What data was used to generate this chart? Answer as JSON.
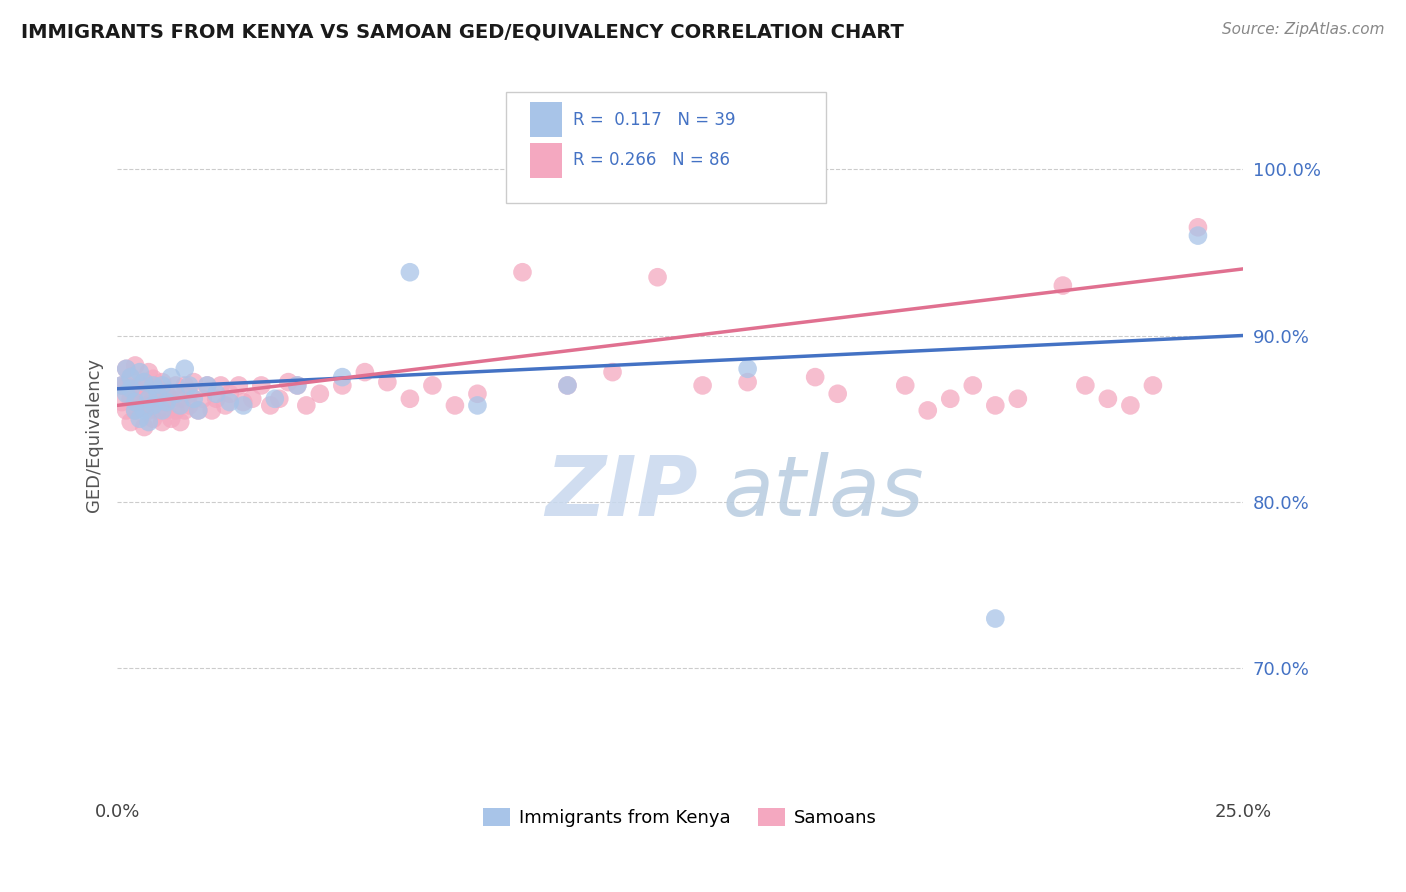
{
  "title": "IMMIGRANTS FROM KENYA VS SAMOAN GED/EQUIVALENCY CORRELATION CHART",
  "source": "Source: ZipAtlas.com",
  "ylabel": "GED/Equivalency",
  "ytick_labels": [
    "70.0%",
    "80.0%",
    "90.0%",
    "100.0%"
  ],
  "ytick_values": [
    0.7,
    0.8,
    0.9,
    1.0
  ],
  "xlim": [
    0.0,
    0.25
  ],
  "ylim": [
    0.625,
    1.055
  ],
  "legend_label1": "Immigrants from Kenya",
  "legend_label2": "Samoans",
  "blue_color": "#a8c4e8",
  "pink_color": "#f4a8c0",
  "blue_line_color": "#4472c4",
  "pink_line_color": "#e07090",
  "watermark_zip": "ZIP",
  "watermark_atlas": "atlas",
  "kenya_x": [
    0.001,
    0.002,
    0.002,
    0.003,
    0.003,
    0.004,
    0.004,
    0.005,
    0.005,
    0.006,
    0.006,
    0.007,
    0.007,
    0.008,
    0.008,
    0.009,
    0.01,
    0.01,
    0.011,
    0.012,
    0.013,
    0.014,
    0.015,
    0.016,
    0.017,
    0.018,
    0.02,
    0.022,
    0.025,
    0.028,
    0.035,
    0.04,
    0.05,
    0.065,
    0.08,
    0.1,
    0.14,
    0.195,
    0.24
  ],
  "kenya_y": [
    0.87,
    0.865,
    0.88,
    0.875,
    0.868,
    0.86,
    0.855,
    0.878,
    0.85,
    0.872,
    0.855,
    0.862,
    0.848,
    0.87,
    0.858,
    0.865,
    0.87,
    0.855,
    0.86,
    0.875,
    0.865,
    0.858,
    0.88,
    0.87,
    0.862,
    0.855,
    0.87,
    0.865,
    0.86,
    0.858,
    0.862,
    0.87,
    0.875,
    0.938,
    0.858,
    0.87,
    0.88,
    0.73,
    0.96
  ],
  "samoan_x": [
    0.001,
    0.001,
    0.002,
    0.002,
    0.002,
    0.003,
    0.003,
    0.003,
    0.004,
    0.004,
    0.004,
    0.005,
    0.005,
    0.005,
    0.006,
    0.006,
    0.006,
    0.007,
    0.007,
    0.007,
    0.008,
    0.008,
    0.008,
    0.009,
    0.009,
    0.01,
    0.01,
    0.01,
    0.011,
    0.011,
    0.012,
    0.012,
    0.013,
    0.013,
    0.014,
    0.014,
    0.015,
    0.015,
    0.016,
    0.016,
    0.017,
    0.018,
    0.019,
    0.02,
    0.021,
    0.022,
    0.023,
    0.024,
    0.025,
    0.027,
    0.028,
    0.03,
    0.032,
    0.034,
    0.036,
    0.038,
    0.04,
    0.042,
    0.045,
    0.05,
    0.055,
    0.06,
    0.065,
    0.07,
    0.075,
    0.08,
    0.09,
    0.1,
    0.11,
    0.12,
    0.13,
    0.14,
    0.155,
    0.16,
    0.175,
    0.18,
    0.185,
    0.19,
    0.195,
    0.2,
    0.21,
    0.215,
    0.22,
    0.225,
    0.23,
    0.24
  ],
  "samoan_y": [
    0.86,
    0.87,
    0.855,
    0.87,
    0.88,
    0.848,
    0.862,
    0.875,
    0.855,
    0.868,
    0.882,
    0.858,
    0.87,
    0.862,
    0.845,
    0.858,
    0.872,
    0.855,
    0.865,
    0.878,
    0.85,
    0.862,
    0.874,
    0.855,
    0.868,
    0.848,
    0.86,
    0.872,
    0.855,
    0.865,
    0.85,
    0.862,
    0.855,
    0.87,
    0.848,
    0.862,
    0.855,
    0.87,
    0.858,
    0.865,
    0.872,
    0.855,
    0.862,
    0.87,
    0.855,
    0.862,
    0.87,
    0.858,
    0.865,
    0.87,
    0.86,
    0.862,
    0.87,
    0.858,
    0.862,
    0.872,
    0.87,
    0.858,
    0.865,
    0.87,
    0.878,
    0.872,
    0.862,
    0.87,
    0.858,
    0.865,
    0.938,
    0.87,
    0.878,
    0.935,
    0.87,
    0.872,
    0.875,
    0.865,
    0.87,
    0.855,
    0.862,
    0.87,
    0.858,
    0.862,
    0.93,
    0.87,
    0.862,
    0.858,
    0.87,
    0.965
  ],
  "kenya_trend_x": [
    0.0,
    0.25
  ],
  "kenya_trend_y": [
    0.868,
    0.9
  ],
  "samoan_trend_x": [
    0.0,
    0.25
  ],
  "samoan_trend_y": [
    0.858,
    0.94
  ]
}
